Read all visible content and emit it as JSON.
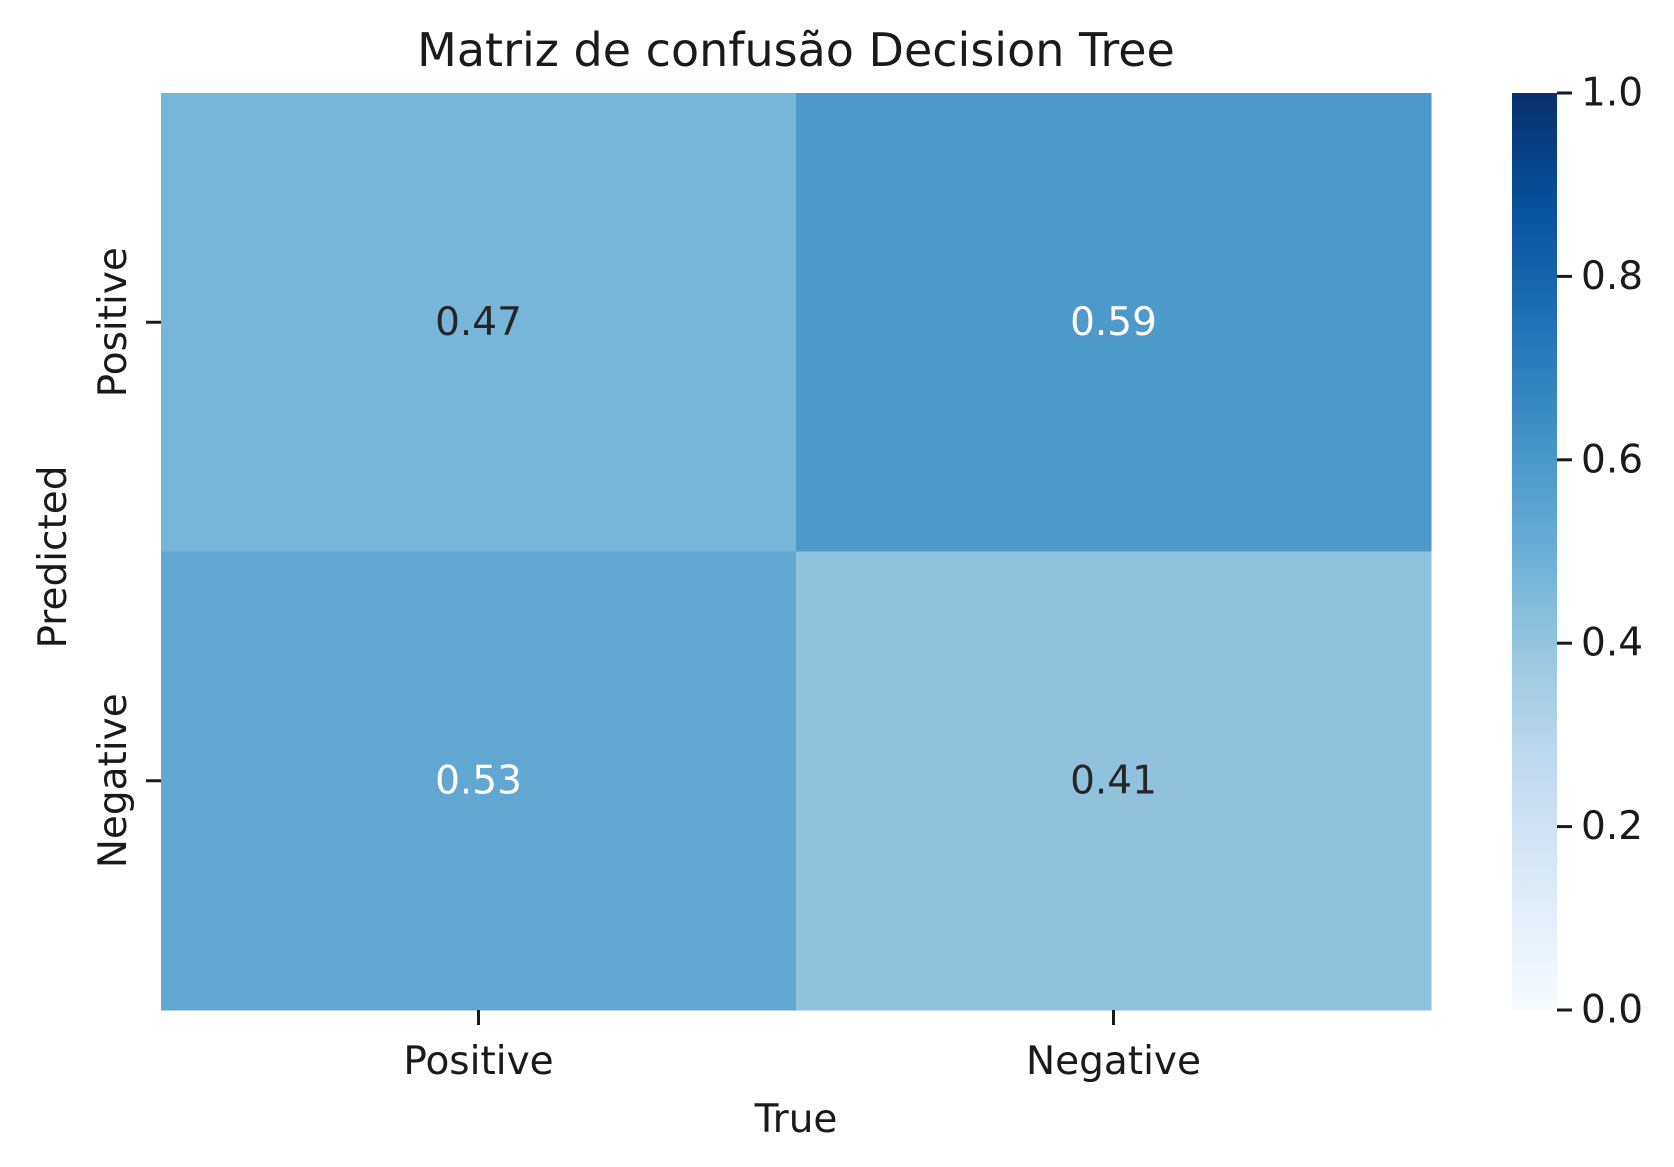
{
  "chart_data": {
    "type": "heatmap",
    "title": "Matriz de confusão Decision Tree",
    "xlabel": "True",
    "ylabel": "Predicted",
    "x_categories": [
      "Positive",
      "Negative"
    ],
    "y_categories": [
      "Positive",
      "Negative"
    ],
    "values": [
      [
        0.47,
        0.59
      ],
      [
        0.53,
        0.41
      ]
    ],
    "colormap": "Blues",
    "vmin": 0.0,
    "vmax": 1.0,
    "colorbar": {
      "ticks": [
        0.0,
        0.2,
        0.4,
        0.6,
        0.8,
        1.0
      ],
      "tick_labels": [
        "0.0",
        "0.2",
        "0.4",
        "0.6",
        "0.8",
        "1.0"
      ]
    },
    "grid": false,
    "legend": "none",
    "annotation_dark_color": "#262626",
    "annotation_light_color": "#ffffff"
  }
}
